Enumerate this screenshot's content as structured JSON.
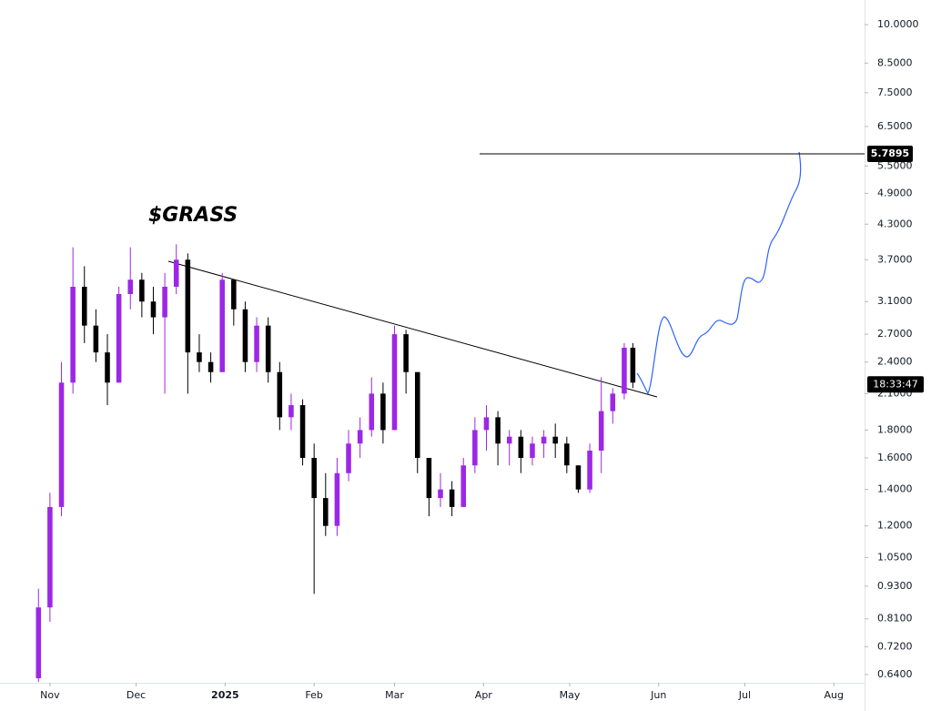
{
  "chart_data": {
    "type": "candlestick",
    "title": "$GRASS",
    "log_scale": true,
    "grid": false,
    "up_color": "#9c27e6",
    "down_color": "#000000",
    "x": [
      -4,
      0,
      4,
      8,
      12,
      16,
      20,
      24,
      28,
      32,
      36,
      40,
      44,
      48,
      52,
      56,
      60,
      64,
      68,
      72,
      76,
      80,
      84,
      88,
      92,
      96,
      100,
      104,
      108,
      112,
      116,
      120,
      124,
      128,
      132,
      136,
      140,
      144,
      148,
      152,
      156,
      160,
      164,
      168,
      172,
      176,
      180,
      184,
      188,
      192,
      196,
      200,
      203
    ],
    "open": [
      0.63,
      0.85,
      1.3,
      2.2,
      3.3,
      2.8,
      2.5,
      2.2,
      3.2,
      3.4,
      3.1,
      2.9,
      3.3,
      3.7,
      2.5,
      2.4,
      2.3,
      3.4,
      3.0,
      2.4,
      2.8,
      2.3,
      1.9,
      2.0,
      1.6,
      1.35,
      1.2,
      1.5,
      1.7,
      1.8,
      2.1,
      1.8,
      2.7,
      2.3,
      1.6,
      1.35,
      1.4,
      1.3,
      1.55,
      1.8,
      1.9,
      1.7,
      1.75,
      1.6,
      1.7,
      1.75,
      1.7,
      1.55,
      1.4,
      1.65,
      1.95,
      2.1,
      2.55
    ],
    "high": [
      0.92,
      1.38,
      2.4,
      3.9,
      3.6,
      3.0,
      2.7,
      3.3,
      3.9,
      3.5,
      3.3,
      3.5,
      3.95,
      3.8,
      2.7,
      2.5,
      3.5,
      3.4,
      3.1,
      2.9,
      2.9,
      2.4,
      2.1,
      2.05,
      1.7,
      1.5,
      1.6,
      1.8,
      1.9,
      2.25,
      2.2,
      2.8,
      2.75,
      2.3,
      1.6,
      1.5,
      1.45,
      1.6,
      1.9,
      2.0,
      1.95,
      1.8,
      1.8,
      1.75,
      1.8,
      1.85,
      1.75,
      1.55,
      1.7,
      2.25,
      2.15,
      2.6,
      2.6
    ],
    "low": [
      0.62,
      0.8,
      1.25,
      2.1,
      2.6,
      2.4,
      2.0,
      2.2,
      3.0,
      2.9,
      2.7,
      2.1,
      3.2,
      2.1,
      2.3,
      2.2,
      2.3,
      2.8,
      2.3,
      2.3,
      2.2,
      1.8,
      1.8,
      1.55,
      0.9,
      1.15,
      1.15,
      1.45,
      1.6,
      1.75,
      1.7,
      1.8,
      2.1,
      1.5,
      1.25,
      1.3,
      1.25,
      1.3,
      1.5,
      1.65,
      1.55,
      1.55,
      1.5,
      1.55,
      1.6,
      1.6,
      1.5,
      1.38,
      1.38,
      1.5,
      1.85,
      2.05,
      2.15
    ],
    "close": [
      0.85,
      1.3,
      2.2,
      3.3,
      2.8,
      2.5,
      2.2,
      3.2,
      3.4,
      3.1,
      2.9,
      3.3,
      3.7,
      2.5,
      2.4,
      2.3,
      3.4,
      3.0,
      2.4,
      2.8,
      2.3,
      1.9,
      2.0,
      1.6,
      1.35,
      1.2,
      1.5,
      1.7,
      1.8,
      2.1,
      1.8,
      2.7,
      2.3,
      1.6,
      1.35,
      1.4,
      1.3,
      1.55,
      1.8,
      1.9,
      1.7,
      1.75,
      1.6,
      1.7,
      1.75,
      1.7,
      1.55,
      1.4,
      1.65,
      1.95,
      2.1,
      2.55,
      2.2
    ],
    "xlim": [
      -17.4,
      283.7
    ],
    "xticks": [
      {
        "value": 0,
        "label": "Nov"
      },
      {
        "value": 30,
        "label": "Dec"
      },
      {
        "value": 61,
        "label": "2025"
      },
      {
        "value": 92,
        "label": "Feb"
      },
      {
        "value": 120,
        "label": "Mar"
      },
      {
        "value": 151,
        "label": "Apr"
      },
      {
        "value": 181,
        "label": "May"
      },
      {
        "value": 212,
        "label": "Jun"
      },
      {
        "value": 242,
        "label": "Jul"
      },
      {
        "value": 273,
        "label": "Aug"
      }
    ],
    "ylim": [
      0.618,
      11.1
    ],
    "yticks": [
      {
        "value": 10,
        "label": "10.0000"
      },
      {
        "value": 8.5,
        "label": "8.5000"
      },
      {
        "value": 7.5,
        "label": "7.5000"
      },
      {
        "value": 6.5,
        "label": "6.5000"
      },
      {
        "value": 5.5,
        "label": "5.5000"
      },
      {
        "value": 4.9,
        "label": "4.9000"
      },
      {
        "value": 4.3,
        "label": "4.3000"
      },
      {
        "value": 3.7,
        "label": "3.7000"
      },
      {
        "value": 3.1,
        "label": "3.1000"
      },
      {
        "value": 2.7,
        "label": "2.7000"
      },
      {
        "value": 2.4,
        "label": "2.4000"
      },
      {
        "value": 2.1,
        "label": "2.1000"
      },
      {
        "value": 1.8,
        "label": "1.8000"
      },
      {
        "value": 1.6,
        "label": "1.6000"
      },
      {
        "value": 1.4,
        "label": "1.4000"
      },
      {
        "value": 1.2,
        "label": "1.2000"
      },
      {
        "value": 1.05,
        "label": "1.0500"
      },
      {
        "value": 0.93,
        "label": "0.9300"
      },
      {
        "value": 0.81,
        "label": "0.8100"
      },
      {
        "value": 0.72,
        "label": "0.7200"
      },
      {
        "value": 0.64,
        "label": "0.6400"
      }
    ],
    "target_level": 5.7895,
    "countdown": "18:33:47"
  }
}
